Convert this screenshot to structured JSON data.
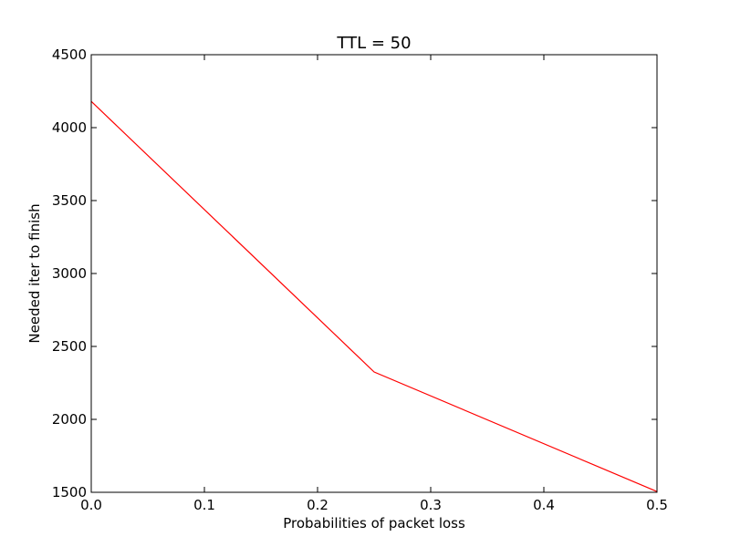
{
  "chart_data": {
    "type": "line",
    "title": "TTL = 50",
    "xlabel": "Probabilities of packet loss",
    "ylabel": "Needed iter to finish",
    "xlim": [
      0.0,
      0.5
    ],
    "ylim": [
      1500,
      4500
    ],
    "x_ticks": [
      "0.0",
      "0.1",
      "0.2",
      "0.3",
      "0.4",
      "0.5"
    ],
    "y_ticks": [
      "1500",
      "2000",
      "2500",
      "3000",
      "3500",
      "4000",
      "4500"
    ],
    "grid": false,
    "series": [
      {
        "x": [
          0.0,
          0.25,
          0.5
        ],
        "y": [
          4180,
          2325,
          1505
        ],
        "color": "#ff0000"
      }
    ]
  }
}
